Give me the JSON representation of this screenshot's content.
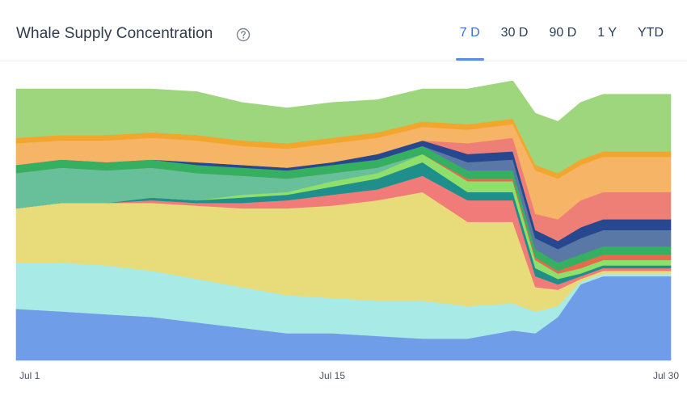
{
  "header": {
    "title": "Whale Supply Concentration",
    "tabs": [
      {
        "label": "7 D",
        "active": true
      },
      {
        "label": "30 D",
        "active": false
      },
      {
        "label": "90 D",
        "active": false
      },
      {
        "label": "1 Y",
        "active": false
      },
      {
        "label": "YTD",
        "active": false
      }
    ]
  },
  "chart_data": {
    "type": "area",
    "stacked": true,
    "title": "",
    "xlabel": "",
    "ylabel": "",
    "x_tick_labels": [
      "Jul 1",
      "Jul 15",
      "Jul 30"
    ],
    "x": [
      1,
      3,
      5,
      7,
      9,
      11,
      13,
      15,
      17,
      19,
      21,
      23,
      24,
      25,
      26,
      27,
      28,
      30
    ],
    "ylim": [
      0,
      100
    ],
    "grid": false,
    "series": [
      {
        "color": "#6f9de8",
        "values": [
          19,
          18,
          17,
          16,
          14,
          12,
          10,
          10,
          9,
          8,
          8,
          11,
          10,
          16,
          28,
          31,
          31,
          31
        ]
      },
      {
        "color": "#a8eae6",
        "values": [
          17,
          18,
          18,
          17,
          16,
          15,
          14,
          13,
          13,
          14,
          12,
          10,
          8,
          4,
          1,
          1,
          1,
          1
        ]
      },
      {
        "color": "#e8dc7a",
        "values": [
          20,
          22,
          23,
          25,
          27,
          29,
          32,
          34,
          37,
          40,
          31,
          30,
          9,
          6,
          1,
          1,
          1,
          1
        ]
      },
      {
        "color": "#f07b78",
        "values": [
          0,
          0,
          0,
          1,
          1,
          2,
          3,
          4,
          4,
          6,
          8,
          8,
          4,
          2,
          1,
          1,
          1,
          1
        ]
      },
      {
        "color": "#1f8f8c",
        "values": [
          0,
          0,
          0,
          1,
          1,
          2,
          2,
          3,
          4,
          5,
          3,
          3,
          3,
          2,
          1,
          1,
          1,
          1
        ]
      },
      {
        "color": "#8fe06a",
        "values": [
          0,
          0,
          0,
          0,
          0,
          1,
          1,
          2,
          2,
          3,
          4,
          4,
          3,
          2,
          2,
          2,
          2,
          2
        ]
      },
      {
        "color": "#68c09a",
        "values": [
          13,
          13,
          12,
          11,
          10,
          7,
          5,
          3,
          2,
          0,
          0,
          0,
          0,
          0,
          0,
          0,
          0,
          0
        ]
      },
      {
        "color": "#e66a4e",
        "values": [
          0,
          0,
          0,
          0,
          0,
          0,
          0,
          0,
          0,
          0,
          1,
          1,
          1,
          1,
          2,
          2,
          2,
          2
        ]
      },
      {
        "color": "#34b060",
        "values": [
          3,
          3,
          3,
          3,
          3,
          3,
          3,
          3,
          3,
          3,
          3,
          3,
          3,
          3,
          3,
          3,
          3,
          3
        ]
      },
      {
        "color": "#5a78a6",
        "values": [
          0,
          0,
          0,
          0,
          0,
          0,
          0,
          0,
          0,
          0,
          3,
          4,
          4,
          5,
          6,
          6,
          6,
          6
        ]
      },
      {
        "color": "#27488f",
        "values": [
          0,
          0,
          0,
          0,
          1,
          1,
          1,
          1,
          2,
          2,
          3,
          3,
          3,
          3,
          4,
          4,
          4,
          4
        ]
      },
      {
        "color": "#ee7f76",
        "values": [
          0,
          0,
          0,
          0,
          0,
          0,
          0,
          0,
          0,
          0,
          4,
          5,
          6,
          8,
          10,
          10,
          10,
          10
        ]
      },
      {
        "color": "#f5b466",
        "values": [
          8,
          7,
          8,
          8,
          8,
          7,
          7,
          7,
          6,
          5,
          5,
          5,
          16,
          15,
          13,
          13,
          13,
          13
        ]
      },
      {
        "color": "#f2a62e",
        "values": [
          2,
          2,
          2,
          2,
          2,
          2,
          2,
          2,
          2,
          2,
          2,
          2,
          2,
          2,
          2,
          2,
          2,
          2
        ]
      },
      {
        "color": "#9ed67e",
        "values": [
          18,
          17,
          17,
          16,
          16,
          14,
          13,
          13,
          12,
          12,
          13,
          14,
          19,
          19,
          21,
          21,
          21,
          21
        ]
      }
    ]
  }
}
